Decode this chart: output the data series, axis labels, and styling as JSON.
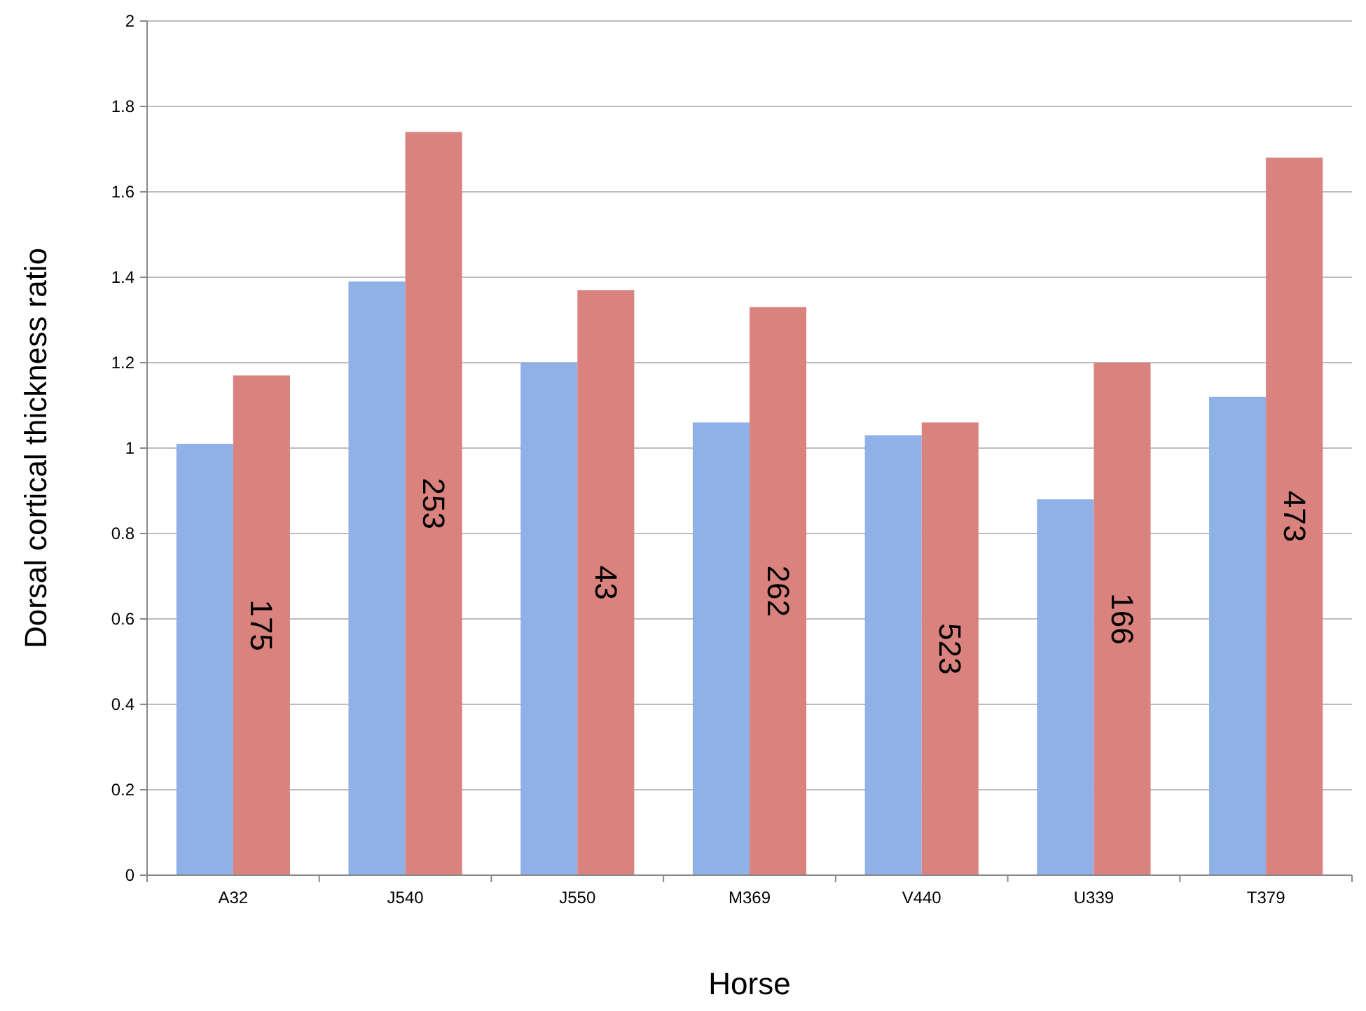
{
  "chart_data": {
    "type": "bar",
    "xlabel": "Horse",
    "ylabel": "Dorsal cortical thickness ratio",
    "categories": [
      "A32",
      "J540",
      "J550",
      "M369",
      "V440",
      "U339",
      "T379"
    ],
    "series": [
      {
        "color": "#8fb1e8",
        "values": [
          1.01,
          1.39,
          1.2,
          1.06,
          1.03,
          0.88,
          1.12
        ]
      },
      {
        "color": "#d9827e",
        "values": [
          1.17,
          1.74,
          1.37,
          1.33,
          1.06,
          1.2,
          1.68
        ]
      }
    ],
    "annotations": [
      "175",
      "253",
      "43",
      "262",
      "523",
      "166",
      "473"
    ],
    "ylim": [
      0,
      2
    ],
    "yticks": [
      0,
      0.2,
      0.4,
      0.6,
      0.8,
      1,
      1.2,
      1.4,
      1.6,
      1.8,
      2
    ],
    "grid": "y"
  }
}
